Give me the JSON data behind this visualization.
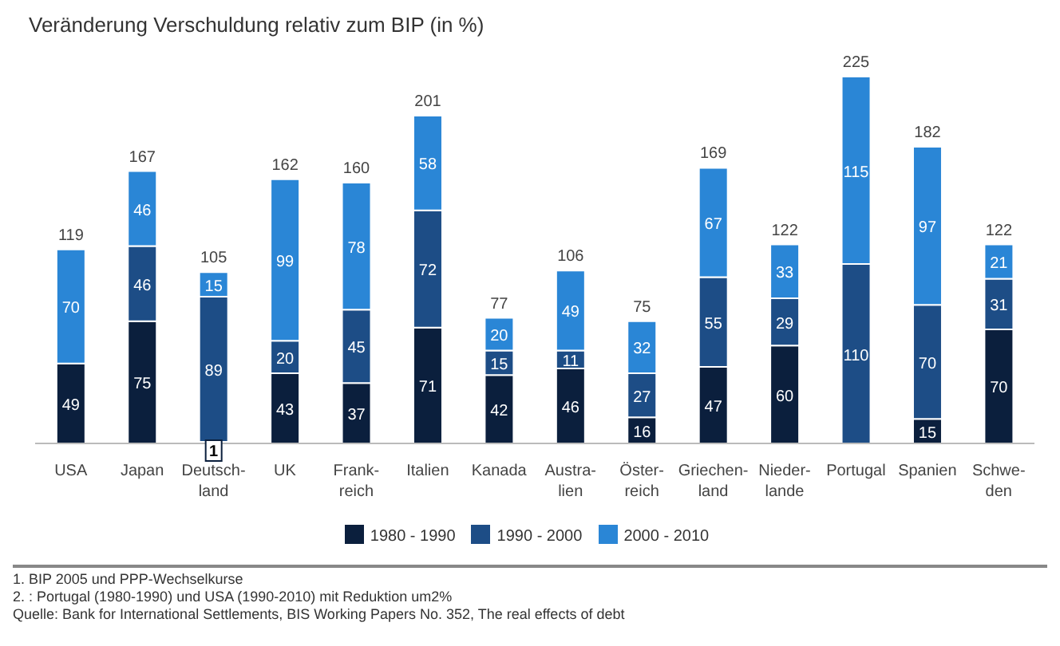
{
  "chart_data": {
    "type": "bar",
    "title": "Veränderung Verschuldung relativ zum BIP (in %)",
    "categories": [
      "USA",
      "Japan",
      "Deutsch-\nland",
      "UK",
      "Frank-\nreich",
      "Italien",
      "Kanada",
      "Austra-\nlien",
      "Öster-\nreich",
      "Griechen-\nland",
      "Nieder-\nlande",
      "Portugal",
      "Spanien",
      "Schwe-\nden"
    ],
    "stacked": true,
    "data_labels": true,
    "legend": "bottom",
    "series": [
      {
        "name": "1980 - 1990",
        "color": "#0b1f3d",
        "values": [
          49,
          75,
          1,
          43,
          37,
          71,
          42,
          46,
          16,
          47,
          60,
          null,
          15,
          70
        ]
      },
      {
        "name": "1990 - 2000",
        "color": "#1d4d86",
        "values": [
          null,
          46,
          89,
          20,
          45,
          72,
          15,
          11,
          27,
          55,
          29,
          110,
          70,
          31
        ]
      },
      {
        "name": "2000 - 2010",
        "color": "#2a86d6",
        "values": [
          70,
          46,
          15,
          99,
          78,
          58,
          20,
          49,
          32,
          67,
          33,
          115,
          97,
          21
        ]
      }
    ],
    "totals": [
      "119",
      "167",
      "105",
      "162",
      "160",
      "201",
      "77",
      "106",
      "75",
      "169",
      "122",
      "225",
      "182",
      "122"
    ],
    "annotations": [
      "1.   BIP 2005 und PPP-Wechselkurse",
      "2.   : Portugal (1980-1990) und USA (1990-2010) mit Reduktion um2%",
      "Quelle: Bank for International Settlements, BIS Working Papers No. 352, The real effects of debt"
    ]
  }
}
